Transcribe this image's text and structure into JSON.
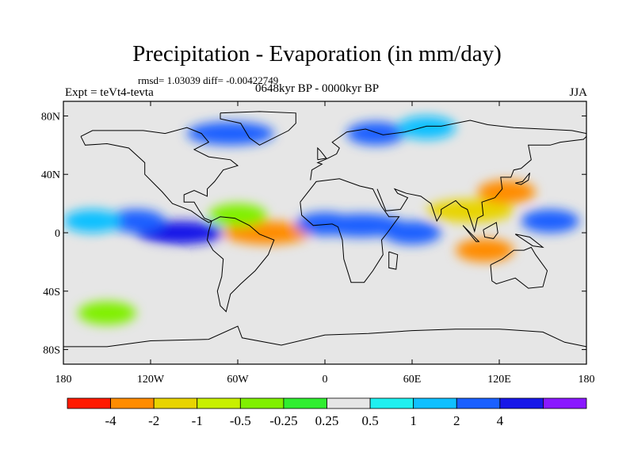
{
  "chart_data": {
    "type": "heatmap",
    "title": "Precipitation - Evaporation (in mm/day)",
    "stats_line": "rmsd= 1.03039 diff= -0.00422749",
    "experiment_label": "Expt = teVt4-tevta",
    "period_label": "0648kyr BP - 0000kyr BP",
    "season_label": "JJA",
    "x_axis": {
      "range": [
        -180,
        180
      ],
      "ticks": [
        -180,
        -120,
        -60,
        0,
        60,
        120,
        180
      ],
      "tick_labels": [
        "180",
        "120W",
        "60W",
        "0",
        "60E",
        "120E",
        "180"
      ]
    },
    "y_axis": {
      "range": [
        -90,
        90
      ],
      "ticks": [
        80,
        40,
        0,
        -40,
        -80
      ],
      "tick_labels": [
        "80N",
        "40N",
        "0",
        "40S",
        "80S"
      ]
    },
    "colorbar": {
      "colors": [
        "#ff1a00",
        "#ff8c00",
        "#e8d400",
        "#c8f000",
        "#80f000",
        "#30ee30",
        "#e6e6e6",
        "#20f0f0",
        "#10c0ff",
        "#1a60ff",
        "#1818e8",
        "#8a18ff"
      ],
      "labels": [
        "-4",
        "-2",
        "-1",
        "-0.5",
        "-0.25",
        "0.25",
        "0.5",
        "1",
        "2",
        "4"
      ]
    },
    "fields": [
      {
        "lon": -100,
        "lat": 0,
        "value": 4.5
      },
      {
        "lon": -130,
        "lat": 8,
        "value": 2.5
      },
      {
        "lon": -160,
        "lat": 8,
        "value": 1.5
      },
      {
        "lon": -40,
        "lat": 0,
        "value": -4
      },
      {
        "lon": -60,
        "lat": 12,
        "value": -0.5
      },
      {
        "lon": 0,
        "lat": 6,
        "value": 2.5
      },
      {
        "lon": 25,
        "lat": 5,
        "value": 2
      },
      {
        "lon": 60,
        "lat": 0,
        "value": 2
      },
      {
        "lon": 110,
        "lat": -12,
        "value": -4
      },
      {
        "lon": 100,
        "lat": 15,
        "value": -2
      },
      {
        "lon": 125,
        "lat": 28,
        "value": -3
      },
      {
        "lon": 155,
        "lat": 8,
        "value": 2.5
      },
      {
        "lon": -65,
        "lat": 68,
        "value": 2.5
      },
      {
        "lon": 35,
        "lat": 68,
        "value": 2.5
      },
      {
        "lon": 70,
        "lat": 72,
        "value": 1
      },
      {
        "lon": -130,
        "lat": -20,
        "value": 0.4
      },
      {
        "lon": -150,
        "lat": -55,
        "value": -0.4
      }
    ]
  }
}
